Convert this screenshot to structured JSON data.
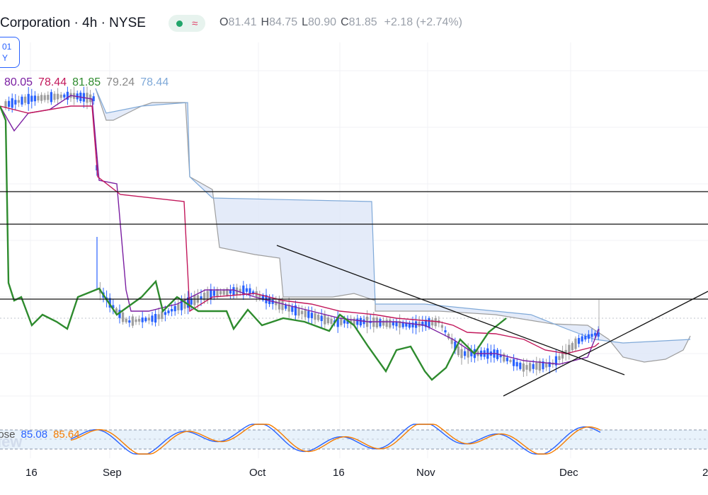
{
  "header": {
    "symbol_title": "Corporation · 4h · NYSE",
    "ohlc": {
      "o_label": "O",
      "o": "81.41",
      "h_label": "H",
      "h": "84.75",
      "l_label": "L",
      "l": "80.90",
      "c_label": "C",
      "c": "81.85",
      "change": "+2.18 (+2.74%)"
    }
  },
  "badge": {
    "line1": "01",
    "line2": "Y"
  },
  "indicator_values": {
    "v1": "80.05",
    "v2": "78.44",
    "v3": "81.85",
    "v4": "79.24",
    "v5": "78.44"
  },
  "oscillator": {
    "label": "lose",
    "watermark": "iew",
    "v1": "85.08",
    "v2": "85.64"
  },
  "colors": {
    "tenkan": "#7b1fa2",
    "kijun": "#c2185b",
    "chikou": "#2e8b2e",
    "senkou_a": "#9e9e9e",
    "senkou_b": "#7fa9d8",
    "cloud": "#dfe8f8",
    "up": "#9e9e9e",
    "down": "#2962ff",
    "stoch_k": "#2962ff",
    "stoch_d": "#f57c00"
  },
  "x_axis_labels": [
    "16",
    "Sep",
    "Oct",
    "16",
    "Nov",
    "Dec",
    "2"
  ],
  "chart_data": {
    "type": "line",
    "title": "",
    "series": [
      {
        "name": "",
        "values": []
      }
    ],
    "ichimoku_last": {
      "tenkan": 80.05,
      "kijun": 78.44,
      "chikou": 81.85,
      "senkou_a": 79.24,
      "senkou_b": 78.44
    },
    "last_candle": {
      "open": 81.41,
      "high": 84.75,
      "low": 80.9,
      "close": 81.85
    },
    "stochastic_last": {
      "k": 85.08,
      "d": 85.64
    }
  }
}
